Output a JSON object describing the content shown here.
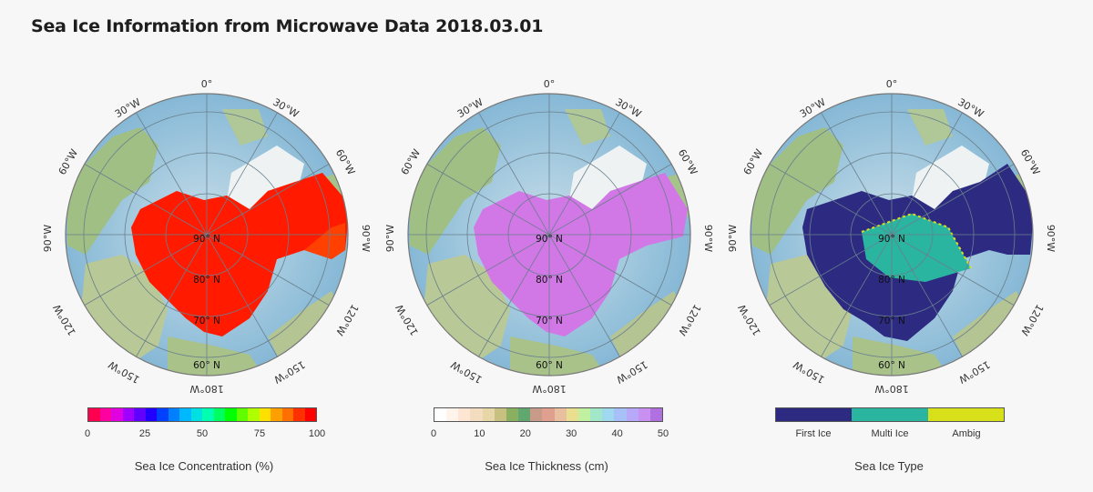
{
  "page": {
    "title": "Sea Ice Information from Microwave Data 2018.03.01"
  },
  "map_labels": {
    "meridians": [
      "0°",
      "30°W",
      "30°W",
      "60°W",
      "60°W",
      "90°W",
      "90°W",
      "120°W",
      "120°W",
      "150°W",
      "150°W",
      "180°W"
    ],
    "latitudes": [
      "90° N",
      "80° N",
      "70° N",
      "60° N"
    ]
  },
  "panels": [
    {
      "id": "concentration",
      "legend_title": "Sea Ice Concentration (%)",
      "legend_ticks": [
        "0",
        "25",
        "50",
        "75",
        "100"
      ],
      "legend_colors": [
        "#ff0050",
        "#ff00a0",
        "#e000e0",
        "#a000ff",
        "#6000ff",
        "#2000ff",
        "#0040ff",
        "#0080ff",
        "#00b8ff",
        "#00e0e0",
        "#00ffb0",
        "#00ff60",
        "#00ff00",
        "#60ff00",
        "#b0ff00",
        "#ffe000",
        "#ffa000",
        "#ff7000",
        "#ff3000",
        "#ff0000"
      ],
      "ice_color": "#ff1a00"
    },
    {
      "id": "thickness",
      "legend_title": "Sea Ice Thickness (cm)",
      "legend_ticks": [
        "0",
        "10",
        "20",
        "30",
        "40",
        "50"
      ],
      "legend_colors": [
        "#ffffff",
        "#fff4ec",
        "#fde7d4",
        "#f3dcc0",
        "#e6d6a8",
        "#c8c080",
        "#88b060",
        "#60a870",
        "#c89a88",
        "#e0a090",
        "#e8c0a0",
        "#e8e090",
        "#c0f0a0",
        "#a0e8c8",
        "#a0d8f0",
        "#a8c0f8",
        "#b8a8f8",
        "#c890f0",
        "#b070e0"
      ],
      "ice_color": "#d177e6"
    },
    {
      "id": "type",
      "legend_title": "Sea Ice Type",
      "legend_ticks": [
        "First Ice",
        "Multi Ice",
        "Ambig"
      ],
      "legend_colors": [
        "#2d2a82",
        "#2ab5a0",
        "#d8e01a"
      ],
      "ice_color": "#2d2a82"
    }
  ]
}
